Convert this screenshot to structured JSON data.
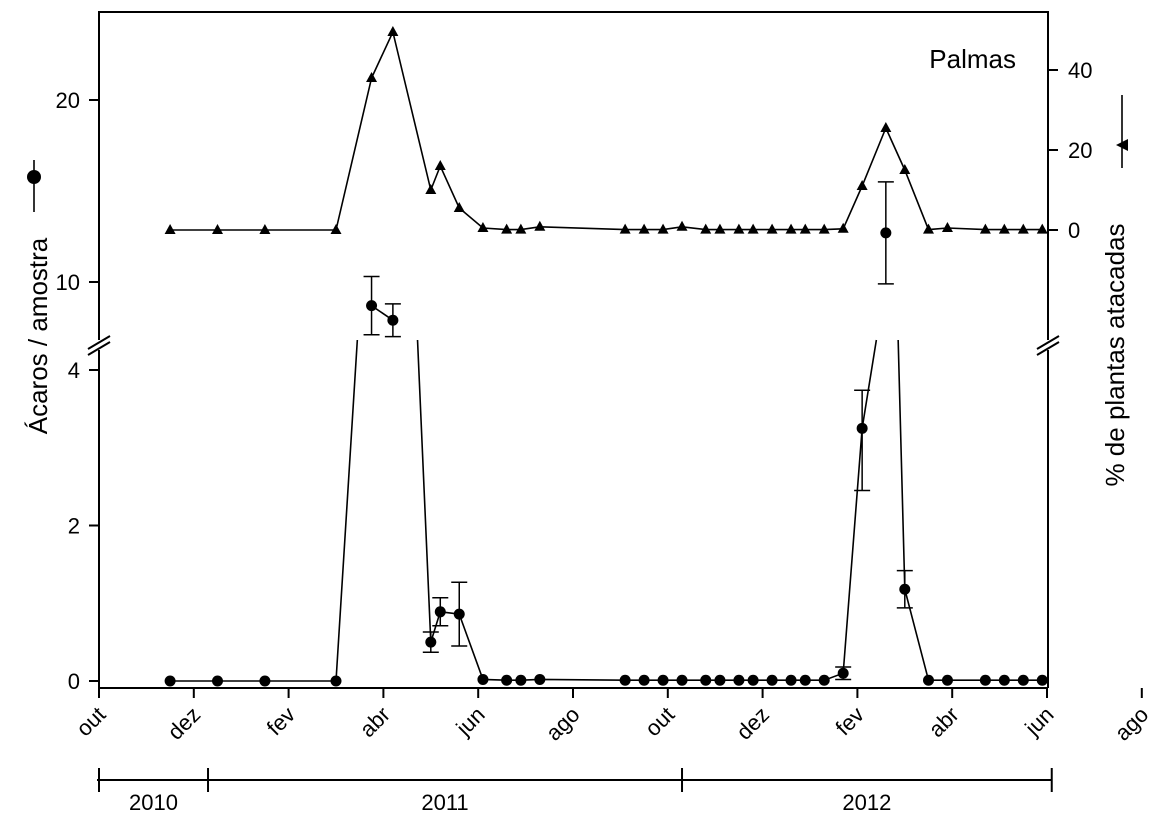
{
  "chart_data": {
    "type": "line",
    "annotation": "Palmas",
    "ylabel_left": "Ácaros / amostra",
    "ylabel_right": "% de plantas atacadas",
    "x_month_labels": [
      "out",
      "dez",
      "fev",
      "abr",
      "jun",
      "ago",
      "out",
      "dez",
      "fev",
      "abr",
      "jun",
      "ago"
    ],
    "x_year_labels": [
      "2010",
      "2011",
      "2012"
    ],
    "y_left_lower_ticks": [
      "0",
      "2",
      "4"
    ],
    "y_left_upper_ticks": [
      "10",
      "20"
    ],
    "y_right_ticks": [
      "0",
      "20",
      "40"
    ],
    "y_left_lower_range": [
      0,
      4.2
    ],
    "y_left_upper_range": [
      7,
      25
    ],
    "y_right_range": [
      -27.5,
      56
    ],
    "axis_break": true,
    "grid": false,
    "series": [
      {
        "marker": "circle",
        "axis": "left",
        "points": [
          {
            "month": 1.5,
            "y": 0
          },
          {
            "month": 2.5,
            "y": 0
          },
          {
            "month": 3.5,
            "y": 0
          },
          {
            "month": 5.0,
            "y": 0
          },
          {
            "month": 5.75,
            "y": 8.7,
            "err": 1.6
          },
          {
            "month": 6.2,
            "y": 7.9,
            "err": 0.9
          },
          {
            "month": 7.0,
            "y": 0.5,
            "err": 0.13
          },
          {
            "month": 7.2,
            "y": 0.89,
            "err": 0.18
          },
          {
            "month": 7.6,
            "y": 0.86,
            "err": 0.41
          },
          {
            "month": 8.1,
            "y": 0.02
          },
          {
            "month": 8.6,
            "y": 0.01
          },
          {
            "month": 8.9,
            "y": 0.01
          },
          {
            "month": 9.3,
            "y": 0.02
          },
          {
            "month": 11.1,
            "y": 0.01
          },
          {
            "month": 11.5,
            "y": 0.01
          },
          {
            "month": 11.9,
            "y": 0.01
          },
          {
            "month": 12.3,
            "y": 0.01
          },
          {
            "month": 12.8,
            "y": 0.01
          },
          {
            "month": 13.1,
            "y": 0.01
          },
          {
            "month": 13.5,
            "y": 0.01
          },
          {
            "month": 13.8,
            "y": 0.01
          },
          {
            "month": 14.2,
            "y": 0.01
          },
          {
            "month": 14.6,
            "y": 0.01
          },
          {
            "month": 14.9,
            "y": 0.01
          },
          {
            "month": 15.3,
            "y": 0.01
          },
          {
            "month": 15.7,
            "y": 0.1,
            "err": 0.08
          },
          {
            "month": 16.1,
            "y": 3.25,
            "err": 0.8
          },
          {
            "month": 16.6,
            "y": 12.7,
            "err": 2.8
          },
          {
            "month": 17.0,
            "y": 1.18,
            "err": 0.24
          },
          {
            "month": 17.5,
            "y": 0.01
          },
          {
            "month": 17.9,
            "y": 0.01
          },
          {
            "month": 18.7,
            "y": 0.01
          },
          {
            "month": 19.1,
            "y": 0.01
          },
          {
            "month": 19.5,
            "y": 0.01
          },
          {
            "month": 19.9,
            "y": 0.01
          }
        ]
      },
      {
        "marker": "triangle",
        "axis": "right",
        "points": [
          {
            "month": 1.5,
            "y": 0
          },
          {
            "month": 2.5,
            "y": 0
          },
          {
            "month": 3.5,
            "y": 0
          },
          {
            "month": 5.0,
            "y": 0
          },
          {
            "month": 5.75,
            "y": 38
          },
          {
            "month": 6.2,
            "y": 49.5
          },
          {
            "month": 7.0,
            "y": 10
          },
          {
            "month": 7.2,
            "y": 16
          },
          {
            "month": 7.6,
            "y": 5.5
          },
          {
            "month": 8.1,
            "y": 0.5
          },
          {
            "month": 8.6,
            "y": 0.1
          },
          {
            "month": 8.9,
            "y": 0.1
          },
          {
            "month": 9.3,
            "y": 0.8
          },
          {
            "month": 11.1,
            "y": 0.1
          },
          {
            "month": 11.5,
            "y": 0.1
          },
          {
            "month": 11.9,
            "y": 0.1
          },
          {
            "month": 12.3,
            "y": 0.8
          },
          {
            "month": 12.8,
            "y": 0.1
          },
          {
            "month": 13.1,
            "y": 0.1
          },
          {
            "month": 13.5,
            "y": 0.1
          },
          {
            "month": 13.8,
            "y": 0.1
          },
          {
            "month": 14.2,
            "y": 0.1
          },
          {
            "month": 14.6,
            "y": 0.1
          },
          {
            "month": 14.9,
            "y": 0.1
          },
          {
            "month": 15.3,
            "y": 0.1
          },
          {
            "month": 15.7,
            "y": 0.3
          },
          {
            "month": 16.1,
            "y": 11
          },
          {
            "month": 16.6,
            "y": 25.5
          },
          {
            "month": 17.0,
            "y": 15
          },
          {
            "month": 17.5,
            "y": 0.1
          },
          {
            "month": 17.9,
            "y": 0.5
          },
          {
            "month": 18.7,
            "y": 0.1
          },
          {
            "month": 19.1,
            "y": 0.1
          },
          {
            "month": 19.5,
            "y": 0.1
          },
          {
            "month": 19.9,
            "y": 0.1
          }
        ]
      }
    ]
  }
}
